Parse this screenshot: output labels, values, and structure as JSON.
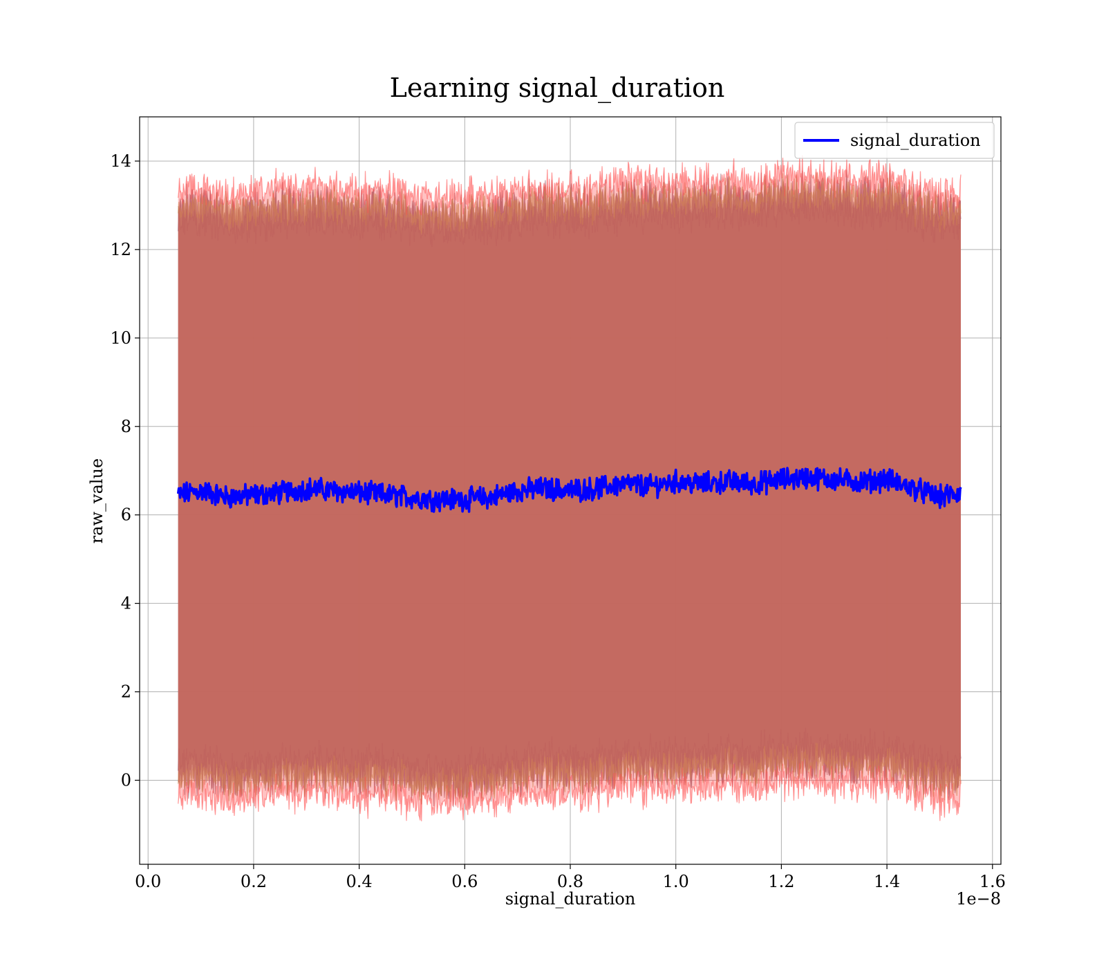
{
  "chart_data": {
    "type": "line",
    "title": "Learning signal_duration",
    "xlabel": "signal_duration",
    "ylabel": "raw_value",
    "x_offset_text": "1e−8",
    "xlim": [
      -0.016,
      1.616
    ],
    "ylim": [
      -1.9,
      15.0
    ],
    "x_range": [
      0.057,
      1.54
    ],
    "x_ticks": [
      0.0,
      0.2,
      0.4,
      0.6,
      0.8,
      1.0,
      1.2,
      1.4,
      1.6
    ],
    "x_tick_labels": [
      "0.0",
      "0.2",
      "0.4",
      "0.6",
      "0.8",
      "1.0",
      "1.2",
      "1.4",
      "1.6"
    ],
    "y_ticks": [
      0,
      2,
      4,
      6,
      8,
      10,
      12,
      14
    ],
    "y_tick_labels": [
      "0",
      "2",
      "4",
      "6",
      "8",
      "10",
      "12",
      "14"
    ],
    "grid": true,
    "legend_position": "top-right",
    "series": [
      {
        "name": "signal_duration",
        "color": "#0000ff",
        "x": [
          0.057,
          0.1,
          0.15,
          0.2,
          0.25,
          0.3,
          0.35,
          0.4,
          0.45,
          0.5,
          0.55,
          0.6,
          0.65,
          0.7,
          0.75,
          0.8,
          0.85,
          0.9,
          0.95,
          1.0,
          1.05,
          1.1,
          1.15,
          1.2,
          1.25,
          1.3,
          1.35,
          1.4,
          1.45,
          1.5,
          1.54
        ],
        "y": [
          6.45,
          6.55,
          6.4,
          6.45,
          6.5,
          6.6,
          6.55,
          6.5,
          6.45,
          6.4,
          6.35,
          6.35,
          6.4,
          6.55,
          6.6,
          6.55,
          6.6,
          6.7,
          6.65,
          6.75,
          6.7,
          6.75,
          6.7,
          6.8,
          6.85,
          6.8,
          6.75,
          6.8,
          6.6,
          6.4,
          6.5
        ]
      }
    ],
    "bands": [
      {
        "color": "#a06f78",
        "lower_offset": -6.5,
        "upper_offset": 6.5
      },
      {
        "color": "#8b4a6e",
        "lower_offset": -6.1,
        "upper_offset": 6.1
      },
      {
        "color": "#b89a50",
        "lower_offset": -6.45,
        "upper_offset": 6.45
      },
      {
        "color": "#ff5050",
        "lower_offset": -6.85,
        "upper_offset": 6.85
      }
    ]
  }
}
